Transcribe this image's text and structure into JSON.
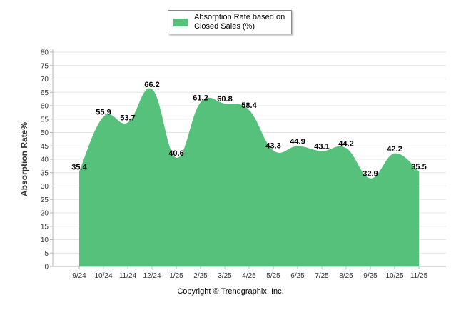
{
  "chart_data": {
    "type": "area",
    "title": "",
    "xlabel": "",
    "ylabel": "Absorption Rate%",
    "ylim": [
      0,
      80
    ],
    "ytick_step": 5,
    "grid": true,
    "legend_position": "top-center",
    "categories": [
      "9/24",
      "10/24",
      "11/24",
      "12/24",
      "1/25",
      "2/25",
      "3/25",
      "4/25",
      "5/25",
      "6/25",
      "7/25",
      "8/25",
      "9/25",
      "10/25",
      "11/25"
    ],
    "series": [
      {
        "name": "Absorption Rate based on Closed Sales (%)",
        "color": "#55c17b",
        "values": [
          35.4,
          55.9,
          53.7,
          66.2,
          40.6,
          61.2,
          60.8,
          58.4,
          43.3,
          44.9,
          43.1,
          44.2,
          32.9,
          42.2,
          35.5
        ]
      }
    ]
  },
  "footer": {
    "copyright": "Copyright © Trendgraphix, Inc."
  },
  "colors": {
    "area": "#55c17b",
    "grid": "#e6e6e6",
    "axis": "#b5b5b5"
  }
}
